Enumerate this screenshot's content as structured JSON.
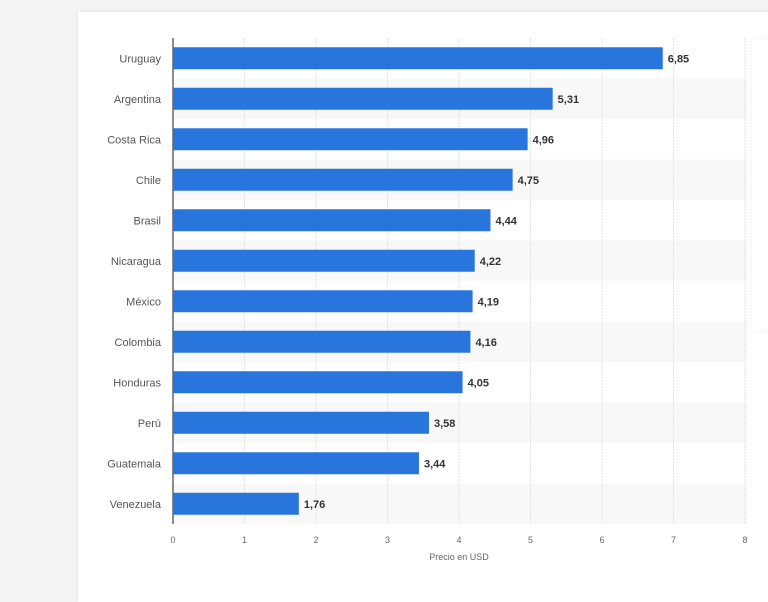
{
  "chart_data": {
    "type": "bar",
    "orientation": "horizontal",
    "categories": [
      "Uruguay",
      "Argentina",
      "Costa Rica",
      "Chile",
      "Brasil",
      "Nicaragua",
      "México",
      "Colombia",
      "Honduras",
      "Perú",
      "Guatemala",
      "Venezuela"
    ],
    "values": [
      6.85,
      5.31,
      4.96,
      4.75,
      4.44,
      4.22,
      4.19,
      4.16,
      4.05,
      3.58,
      3.44,
      1.76
    ],
    "value_labels": [
      "6,85",
      "5,31",
      "4,96",
      "4,75",
      "4,44",
      "4,22",
      "4,19",
      "4,16",
      "4,05",
      "3,58",
      "3,44",
      "1,76"
    ],
    "xlabel": "Precio en USD",
    "ylabel": "",
    "xlim": [
      0,
      8
    ],
    "xticks": [
      "0",
      "1",
      "2",
      "3",
      "4",
      "5",
      "6",
      "7",
      "8"
    ],
    "grid": true,
    "bar_color": "#2876dd"
  }
}
